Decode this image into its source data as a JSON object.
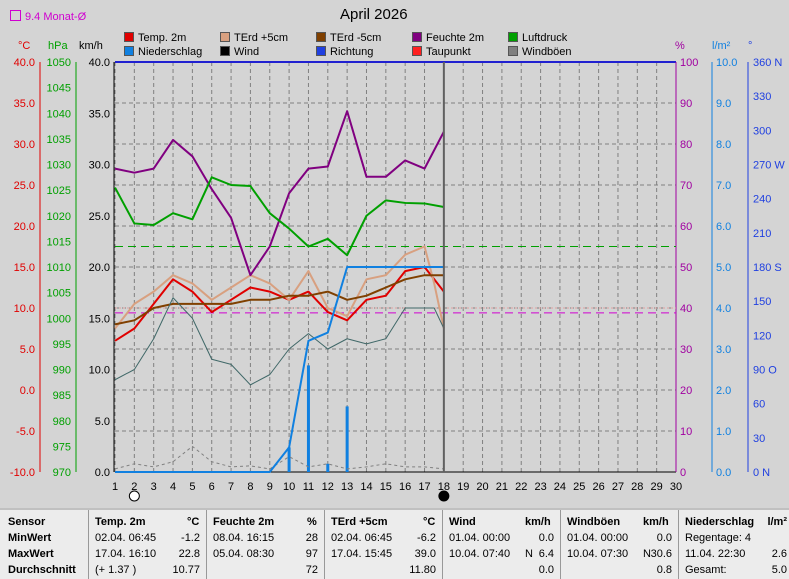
{
  "title": "April 2026",
  "avg_label": "9.4 Monat-Ø",
  "axis_units": {
    "temp": "°C",
    "pressure": "hPa",
    "wind": "km/h",
    "humidity": "%",
    "rain": "l/m²",
    "direction": "°"
  },
  "legend": [
    {
      "label": "Temp. 2m",
      "color": "#e00000"
    },
    {
      "label": "TErd +5cm",
      "color": "#d8a080"
    },
    {
      "label": "TErd -5cm",
      "color": "#804000"
    },
    {
      "label": "Feuchte 2m",
      "color": "#800080"
    },
    {
      "label": "Luftdruck",
      "color": "#00a000"
    },
    {
      "label": "Niederschlag",
      "color": "#1080e0"
    },
    {
      "label": "Wind",
      "color": "#000000"
    },
    {
      "label": "Richtung",
      "color": "#2040e0"
    },
    {
      "label": "Taupunkt",
      "color": "#ff2020"
    },
    {
      "label": "Windböen",
      "color": "#808080"
    }
  ],
  "chart_data": {
    "type": "line",
    "x": [
      1,
      2,
      3,
      4,
      5,
      6,
      7,
      8,
      9,
      10,
      11,
      12,
      13,
      14,
      15,
      16,
      17,
      18
    ],
    "xlim": [
      1,
      30
    ],
    "x_ticks": [
      "1",
      "2",
      "3",
      "4",
      "5",
      "6",
      "7",
      "8",
      "9",
      "10",
      "11",
      "12",
      "13",
      "14",
      "15",
      "16",
      "17",
      "18",
      "19",
      "20",
      "21",
      "22",
      "23",
      "24",
      "25",
      "26",
      "27",
      "28",
      "29",
      "30"
    ],
    "y_axes": {
      "temp": {
        "range": [
          -10,
          40
        ],
        "ticks": [
          "40.0",
          "35.0",
          "30.0",
          "25.0",
          "20.0",
          "15.0",
          "10.0",
          "5.0",
          "0.0",
          "-5.0",
          "-10.0"
        ],
        "color": "#e00000"
      },
      "pressure": {
        "range": [
          970,
          1050
        ],
        "ticks": [
          "1050",
          "1045",
          "1040",
          "1035",
          "1030",
          "1025",
          "1020",
          "1015",
          "1010",
          "1005",
          "1000",
          "995",
          "990",
          "985",
          "980",
          "975",
          "970"
        ],
        "color": "#00a000"
      },
      "wind": {
        "range": [
          0,
          40
        ],
        "ticks": [
          "40.0",
          "35.0",
          "30.0",
          "25.0",
          "20.0",
          "15.0",
          "10.0",
          "5.0",
          "0.0"
        ],
        "color": "#000000"
      },
      "humidity": {
        "range": [
          0,
          100
        ],
        "ticks": [
          "100",
          "90",
          "80",
          "70",
          "60",
          "50",
          "40",
          "30",
          "20",
          "10",
          "0"
        ],
        "color": "#a000a0"
      },
      "rain": {
        "range": [
          0,
          10
        ],
        "ticks": [
          "10.0",
          "9.0",
          "8.0",
          "7.0",
          "6.0",
          "5.0",
          "4.0",
          "3.0",
          "2.0",
          "1.0",
          "0.0"
        ],
        "color": "#1080e0"
      },
      "direction": {
        "range": [
          0,
          360
        ],
        "ticks": [
          "360 N",
          "330",
          "300",
          "270 W",
          "240",
          "210",
          "180 S",
          "150",
          "120",
          "90 O",
          "60",
          "30",
          "0 N"
        ],
        "color": "#2040e0"
      }
    },
    "series": [
      {
        "name": "Temp. 2m",
        "axis": "temp",
        "color": "#e00000",
        "width": 2,
        "x": [
          1,
          2,
          3,
          4,
          5,
          6,
          7,
          8,
          9,
          10,
          11,
          12,
          13,
          14,
          15,
          16,
          17,
          17.5,
          18
        ],
        "values": [
          6.0,
          7.5,
          10.5,
          13.5,
          12.0,
          9.5,
          11.0,
          12.5,
          12.0,
          11.0,
          12.0,
          9.5,
          8.5,
          11.0,
          11.5,
          14.5,
          15.0,
          13.5,
          12.0
        ]
      },
      {
        "name": "TErd +5cm",
        "axis": "temp",
        "color": "#d8a080",
        "width": 2,
        "x": [
          1,
          2,
          3,
          4,
          5,
          6,
          7,
          8,
          9,
          10,
          11,
          12,
          13,
          14,
          15,
          16,
          17,
          17.5,
          18
        ],
        "values": [
          7.5,
          10.5,
          12.0,
          14.0,
          13.0,
          11.0,
          12.5,
          14.0,
          13.0,
          11.0,
          14.5,
          10.0,
          9.0,
          13.5,
          14.0,
          16.5,
          17.5,
          13.0,
          7.5
        ]
      },
      {
        "name": "TErd -5cm",
        "axis": "temp",
        "color": "#804000",
        "width": 2,
        "x": [
          1,
          2,
          3,
          4,
          5,
          6,
          7,
          8,
          9,
          10,
          11,
          12,
          13,
          14,
          15,
          16,
          17,
          17.5,
          18
        ],
        "values": [
          8.0,
          8.5,
          10.0,
          10.5,
          10.5,
          10.5,
          10.5,
          11.0,
          11.0,
          11.5,
          11.5,
          12.0,
          11.0,
          11.5,
          12.5,
          13.5,
          14.0,
          14.0,
          14.0
        ]
      },
      {
        "name": "Feuchte 2m",
        "axis": "humidity",
        "color": "#800080",
        "width": 2,
        "x": [
          1,
          2,
          3,
          4,
          5,
          6,
          7,
          8,
          9,
          10,
          11,
          12,
          13,
          14,
          15,
          16,
          17,
          18
        ],
        "values": [
          74,
          73,
          74,
          81,
          77,
          69,
          62,
          48,
          55,
          68,
          74,
          74.5,
          88,
          72,
          72,
          76,
          74,
          83
        ]
      },
      {
        "name": "Luftdruck",
        "axis": "pressure",
        "color": "#00a000",
        "width": 2,
        "x": [
          1,
          2,
          3,
          4,
          5,
          6,
          7,
          8,
          9,
          10,
          11,
          12,
          13,
          14,
          15,
          16,
          17,
          18
        ],
        "values": [
          1025.5,
          1018.5,
          1018.2,
          1020.5,
          1019.3,
          1027.5,
          1026.0,
          1025.8,
          1020.5,
          1017.5,
          1014.0,
          1015.5,
          1012.3,
          1020.0,
          1023.0,
          1022.5,
          1022.4,
          1021.7
        ]
      },
      {
        "name": "Windböen",
        "axis": "wind",
        "color": "#406868",
        "width": 1,
        "x": [
          1,
          2,
          3,
          4,
          5,
          6,
          7,
          8,
          9,
          10,
          11,
          12,
          13,
          14,
          15,
          16,
          17,
          17.5,
          18
        ],
        "values": [
          9.0,
          10.0,
          13.0,
          17.0,
          15.0,
          11.0,
          10.5,
          8.5,
          9.5,
          12.0,
          13.5,
          12.0,
          13.0,
          12.5,
          13.0,
          16.0,
          16.0,
          16.0,
          14.0
        ]
      },
      {
        "name": "Wind",
        "axis": "wind",
        "color": "#808080",
        "width": 1,
        "dash": "3,3",
        "x": [
          1,
          2,
          3,
          4,
          5,
          6,
          7,
          8,
          9,
          10,
          11,
          12,
          13,
          14,
          15,
          16,
          17,
          18
        ],
        "values": [
          0.3,
          0.8,
          0.5,
          1.0,
          2.5,
          1.0,
          0.5,
          0.6,
          0.3,
          1.5,
          0.5,
          0.8,
          0.3,
          0.5,
          0.8,
          0.5,
          0.5,
          0.3
        ]
      },
      {
        "name": "Niederschlag",
        "axis": "rain",
        "color": "#1080e0",
        "width": 2,
        "x": [
          1,
          9,
          10,
          11,
          12,
          13,
          14,
          18
        ],
        "values": [
          0.0,
          0.0,
          0.6,
          3.2,
          3.4,
          5.0,
          5.0,
          5.0
        ]
      }
    ],
    "rain_bars": {
      "axis": "rain",
      "color": "#1080e0",
      "x": [
        10,
        11,
        12,
        13
      ],
      "values": [
        0.6,
        2.6,
        0.2,
        1.6
      ]
    },
    "reference_lines": [
      {
        "axis": "pressure",
        "value": 1014.0,
        "color": "#00a000",
        "dash": "8,5"
      },
      {
        "axis": "temp",
        "value": 9.4,
        "color": "#d000d0",
        "dash": "8,5"
      },
      {
        "axis": "temp",
        "value": 10.0,
        "color": "#e0a0a0",
        "dash": "2,2"
      }
    ],
    "current_day": 18,
    "moon_markers": [
      {
        "day": 2,
        "phase": "new"
      },
      {
        "day": 18,
        "phase": "full"
      }
    ]
  },
  "stats": {
    "headers": [
      "Sensor",
      "Temp. 2m",
      "°C",
      "Feuchte 2m",
      "%",
      "TErd +5cm",
      "°C",
      "Wind",
      "km/h",
      "Windböen",
      "km/h",
      "Niederschlag",
      "l/m²"
    ],
    "row_labels": [
      "MinWert",
      "MaxWert",
      "Durchschnitt"
    ],
    "temp": [
      [
        "02.04.  06:45",
        "-1.2"
      ],
      [
        "17.04.  16:10",
        "22.8"
      ],
      [
        "(+ 1.37 )",
        "10.77"
      ]
    ],
    "humidity": [
      [
        "08.04.  16:15",
        "28"
      ],
      [
        "05.04.  08:30",
        "97"
      ],
      [
        "",
        "72"
      ]
    ],
    "soil": [
      [
        "02.04.  06:45",
        "-6.2"
      ],
      [
        "17.04.  15:45",
        "39.0"
      ],
      [
        "",
        "11.80"
      ]
    ],
    "wind": [
      [
        "01.04.  00:00",
        "",
        "0.0"
      ],
      [
        "10.04.  07:40",
        "N",
        "6.4"
      ],
      [
        "",
        "",
        "0.0"
      ]
    ],
    "gust": [
      [
        "01.04.  00:00",
        "",
        "0.0"
      ],
      [
        "10.04.  07:30",
        "N",
        "30.6"
      ],
      [
        "",
        "",
        "0.8"
      ]
    ],
    "rain": [
      [
        "Regentage: 4",
        ""
      ],
      [
        "11.04.  22:30",
        "2.6"
      ],
      [
        "Gesamt:",
        "5.0"
      ]
    ]
  }
}
